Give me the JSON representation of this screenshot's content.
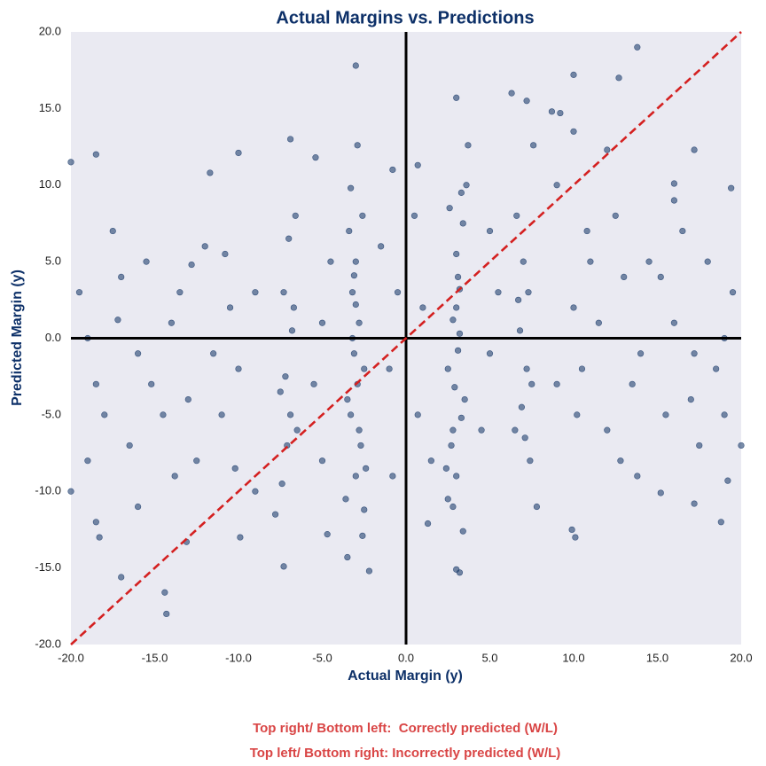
{
  "chart_data": {
    "type": "scatter",
    "title": "Actual Margins vs. Predictions",
    "x_label": "Actual Margin (y)",
    "y_label": "Predicted Margin (y)",
    "annotations": [
      "Top right/ Bottom left:  Correctly predicted (W/L)",
      "Top left/ Bottom right: Incorrectly predicted (W/L)"
    ],
    "color": "#1f3f6e",
    "background": "#eaeaf2",
    "xlim": [
      -20,
      20
    ],
    "ylim": [
      -20,
      20
    ],
    "xticks": [
      {
        "value": -20,
        "label": "-20.0"
      },
      {
        "value": -15,
        "label": "-15.0"
      },
      {
        "value": -10,
        "label": "-10.0"
      },
      {
        "value": -5,
        "label": "-5.0"
      },
      {
        "value": 0,
        "label": "0.0"
      },
      {
        "value": 5,
        "label": "5.0"
      },
      {
        "value": 10,
        "label": "10.0"
      },
      {
        "value": 15,
        "label": "15.0"
      },
      {
        "value": 20,
        "label": "20.0"
      }
    ],
    "yticks": [
      {
        "value": -20,
        "label": "-20.0"
      },
      {
        "value": -15,
        "label": "-15.0"
      },
      {
        "value": -10,
        "label": "-10.0"
      },
      {
        "value": -5,
        "label": "-5.0"
      },
      {
        "value": 0,
        "label": "0.0"
      },
      {
        "value": 5,
        "label": "5.0"
      },
      {
        "value": 10,
        "label": "10.0"
      },
      {
        "value": 15,
        "label": "15.0"
      },
      {
        "value": 20,
        "label": "20.0"
      }
    ],
    "hlines": [
      0
    ],
    "vlines": [
      0
    ],
    "reference_line_color": "#000000",
    "identity_line": true,
    "identity_color": "#d42020",
    "x": [
      -3,
      13.8,
      10,
      12.7,
      6.3,
      3,
      7.2,
      8.7,
      9.2,
      -14.3,
      -14.4,
      -17,
      -7.3,
      -3.5,
      3,
      3.2,
      -2.2,
      -20,
      -18.5,
      -10,
      -6.9,
      -2.9,
      -11.7,
      -5.4,
      -18.5,
      -18.3,
      -13.1,
      -9.9,
      -4.7,
      -2.6,
      9.9,
      10.1,
      18.8,
      17.2,
      15.2,
      19.2,
      1.3,
      2.8,
      3.4,
      17.2,
      19.4,
      16,
      12,
      10,
      7.6,
      3.7,
      -0.8,
      0.7,
      -3,
      -3.2,
      -2.8,
      -3.1,
      -2.9,
      -3.3,
      -2.7,
      -3,
      -3.4,
      -2.6,
      -3,
      -2.5,
      -3.5,
      -3.1,
      -2.8,
      -3.2,
      -2.4,
      -3.6,
      -2.5,
      -3.3,
      3,
      3.2,
      2.8,
      3.1,
      2.9,
      3.3,
      2.7,
      3,
      3.4,
      2.6,
      3,
      2.5,
      3.5,
      3.1,
      2.8,
      3.2,
      2.4,
      3.6,
      2.5,
      3.3,
      -7,
      -7.3,
      -6.8,
      -7.2,
      -6.9,
      -7.1,
      -7.4,
      -6.6,
      -7.5,
      -6.7,
      -7.8,
      -6.5,
      7,
      7.3,
      6.8,
      7.2,
      6.9,
      7.1,
      7.4,
      6.6,
      7.5,
      6.7,
      7.8,
      6.5,
      -10,
      -10.5,
      -11,
      -12,
      -13,
      -14,
      -12.5,
      -10.2,
      -13.5,
      -11.5,
      -14.5,
      -12.8,
      -10.8,
      -13.8,
      10,
      10.5,
      11,
      12,
      13,
      14,
      12.5,
      10.2,
      13.5,
      11.5,
      14.5,
      12.8,
      10.8,
      13.8,
      -16,
      -17,
      -18,
      -19,
      -20,
      -16.5,
      -17.5,
      -19.5,
      -15.5,
      -18.5,
      -16,
      -19,
      -17.2,
      -15.2,
      16,
      17,
      18,
      19,
      20,
      16.5,
      17.5,
      19.5,
      15.5,
      18.5,
      16,
      19,
      17.2,
      15.2,
      -0.5,
      -1,
      -1.5,
      1,
      0.7,
      1.5,
      -0.8,
      0.5,
      -5,
      -5.5,
      -4.5,
      5,
      5.5,
      4.5,
      -5,
      5,
      -9,
      9,
      -9,
      9
    ],
    "values": [
      17.8,
      19,
      17.2,
      17,
      16,
      15.7,
      15.5,
      14.8,
      14.7,
      -18,
      -16.6,
      -15.6,
      -14.9,
      -14.3,
      -15.1,
      -15.3,
      -15.2,
      11.5,
      12,
      12.1,
      13,
      12.6,
      10.8,
      11.8,
      -12,
      -13,
      -13.3,
      -13,
      -12.8,
      -12.9,
      -12.5,
      -13,
      -12,
      -10.8,
      -10.1,
      -9.3,
      -12.1,
      -11,
      -12.6,
      12.3,
      9.8,
      10.1,
      12.3,
      13.5,
      12.6,
      12.6,
      11,
      11.3,
      5,
      3,
      1,
      -1,
      -3,
      -5,
      -7,
      -9,
      7,
      8,
      2.2,
      -2,
      -4,
      4.1,
      -6,
      0,
      -8.5,
      -10.5,
      -11.2,
      9.8,
      5.5,
      3.2,
      1.2,
      -0.8,
      -3.2,
      -5.2,
      -7,
      -9,
      7.5,
      8.5,
      2,
      -2,
      -4,
      4,
      -6,
      0.3,
      -8.5,
      10,
      -10.5,
      9.5,
      6.5,
      3,
      0.5,
      -2.5,
      -5,
      -7,
      -9.5,
      8,
      -3.5,
      2,
      -11.5,
      -6,
      5,
      3,
      0.5,
      -2,
      -4.5,
      -6.5,
      -8,
      8,
      -3,
      2.5,
      -11,
      -6,
      -2,
      2,
      -5,
      6,
      -4,
      1,
      -8,
      -8.5,
      3,
      -1,
      -5,
      4.8,
      5.5,
      -9,
      2,
      -2,
      5,
      -6,
      4,
      -1,
      8,
      -5,
      -3,
      1,
      5,
      -8,
      7,
      -9,
      -1,
      4,
      -5,
      0,
      -10,
      -7,
      7,
      3,
      5,
      -3,
      -11,
      -8,
      1.2,
      -3,
      1,
      -4,
      5,
      0,
      -7,
      7,
      -7,
      3,
      -5,
      -2,
      9,
      -5,
      -1,
      4,
      3,
      -2,
      6,
      2,
      -5,
      -8,
      -9,
      8,
      1,
      -3,
      5,
      -1,
      3,
      -6,
      -8,
      7,
      3,
      -3,
      -10,
      10
    ]
  }
}
